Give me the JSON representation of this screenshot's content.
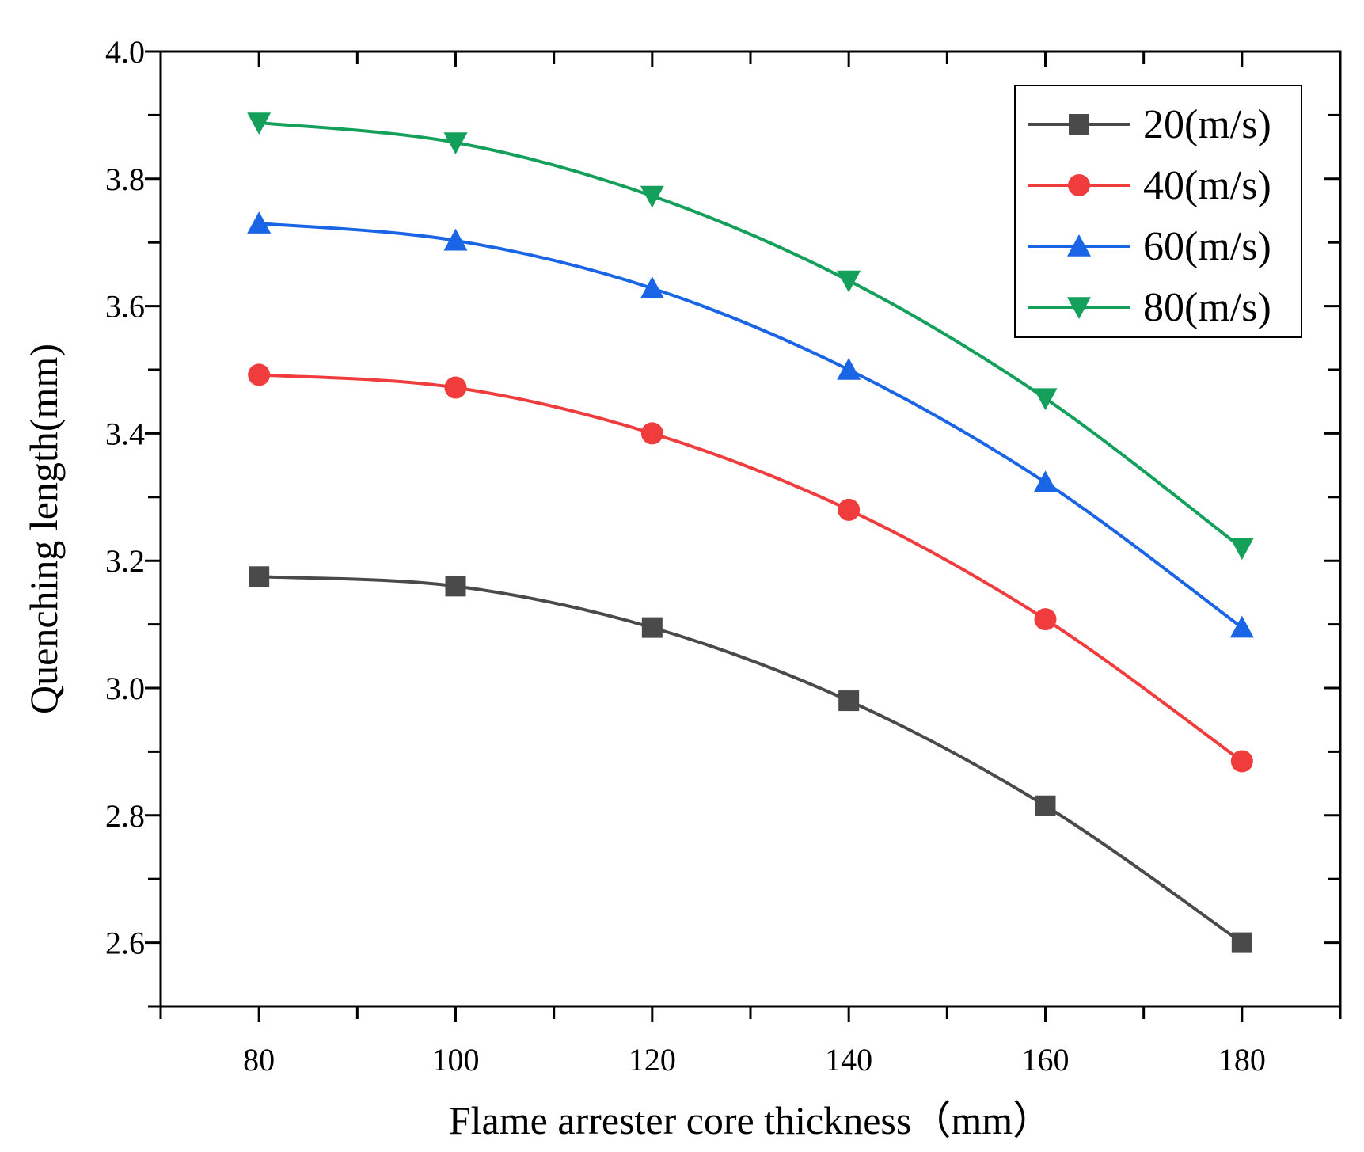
{
  "chart_data": {
    "type": "line",
    "xlabel": "Flame arrester core thickness（mm）",
    "ylabel": "Quenching length(mm)",
    "xlim": [
      70,
      190
    ],
    "ylim": [
      2.5,
      4.0
    ],
    "x": [
      80,
      100,
      120,
      140,
      160,
      180
    ],
    "xticks": [
      "80",
      "100",
      "120",
      "140",
      "160",
      "180"
    ],
    "yticks": [
      "2.6",
      "2.8",
      "3.0",
      "3.2",
      "3.4",
      "3.6",
      "3.8",
      "4.0"
    ],
    "legend_position": "top-right",
    "series": [
      {
        "name": "20(m/s)",
        "color": "#4a4a4a",
        "marker": "square",
        "values": [
          3.175,
          3.16,
          3.095,
          2.98,
          2.815,
          2.6
        ]
      },
      {
        "name": "40(m/s)",
        "color": "#f03c3c",
        "marker": "circle",
        "values": [
          3.492,
          3.472,
          3.4,
          3.28,
          3.108,
          2.885
        ]
      },
      {
        "name": "60(m/s)",
        "color": "#1a64e6",
        "marker": "triangle-up",
        "values": [
          3.73,
          3.703,
          3.628,
          3.5,
          3.323,
          3.095
        ]
      },
      {
        "name": "80(m/s)",
        "color": "#14a05a",
        "marker": "triangle-down",
        "values": [
          3.888,
          3.857,
          3.773,
          3.64,
          3.455,
          3.22
        ]
      }
    ]
  }
}
